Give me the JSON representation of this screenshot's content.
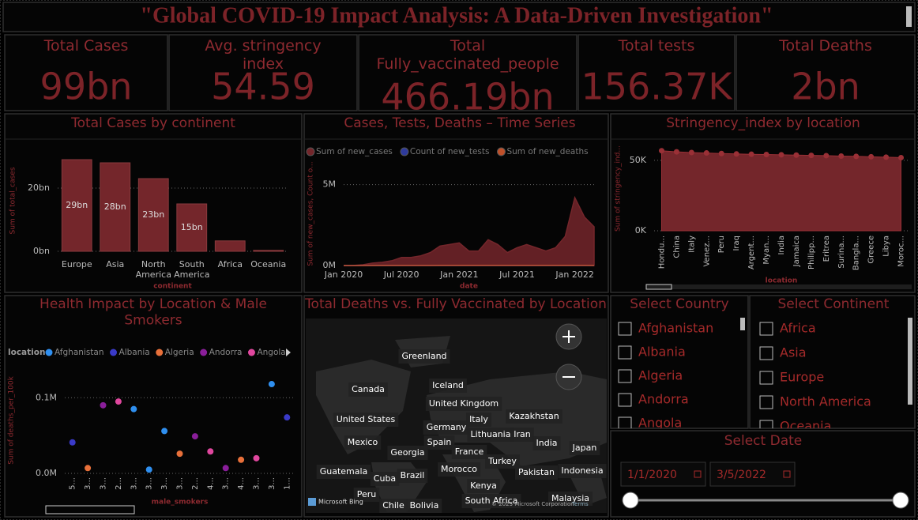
{
  "title": "\"Global COVID-19 Impact Analysis: A Data-Driven Investigation\"",
  "cards": [
    {
      "label": "Total Cases",
      "value": "99bn"
    },
    {
      "label": "Avg. stringency index",
      "value": "54.59"
    },
    {
      "label": "Total Fully_vaccinated_people",
      "value": "466.19bn"
    },
    {
      "label": "Total tests",
      "value": "156.37K"
    },
    {
      "label": "Total Deaths",
      "value": "2bn"
    }
  ],
  "chart_data": [
    {
      "type": "bar",
      "title": "Total Cases by continent",
      "categories": [
        "Europe",
        "Asia",
        "North America",
        "South America",
        "Africa",
        "Oceania"
      ],
      "values": [
        29,
        28,
        23,
        15,
        3.3,
        0.3
      ],
      "value_labels": [
        "29bn",
        "28bn",
        "23bn",
        "15bn",
        null,
        null
      ],
      "color": "#74262b",
      "ylim": [
        0,
        32
      ],
      "yticks": [
        {
          "value": 0,
          "label": "0bn"
        },
        {
          "value": 20,
          "label": "20bn"
        }
      ],
      "grid": true,
      "y_label": "Sum of total_cases",
      "x_label": "continent"
    },
    {
      "type": "line",
      "title": "Cases, Tests, Deaths – Time Series",
      "x": [
        "2020-01",
        "2020-02",
        "2020-03",
        "2020-04",
        "2020-05",
        "2020-06",
        "2020-07",
        "2020-08",
        "2020-09",
        "2020-10",
        "2020-11",
        "2020-12",
        "2021-01",
        "2021-02",
        "2021-03",
        "2021-04",
        "2021-05",
        "2021-06",
        "2021-07",
        "2021-08",
        "2021-09",
        "2021-10",
        "2021-11",
        "2021-12",
        "2022-01",
        "2022-02",
        "2022-03"
      ],
      "series": [
        {
          "name": "Sum of new_cases",
          "color": "#74262b",
          "values": [
            0.002,
            0.003,
            0.05,
            0.15,
            0.2,
            0.3,
            0.5,
            0.5,
            0.6,
            0.8,
            1.2,
            1.3,
            1.4,
            0.9,
            0.9,
            1.6,
            1.3,
            0.8,
            1.1,
            1.3,
            1.1,
            0.9,
            1.1,
            1.8,
            4.2,
            3.0,
            2.4
          ]
        },
        {
          "name": "Count of new_tests",
          "color": "#2e3a9c",
          "values": [
            0.0001,
            0.0001,
            0.0001,
            0.0001,
            0.0001,
            0.0001,
            0.0001,
            0.0001,
            0.0001,
            0.0001,
            0.0001,
            0.0001,
            0.0001,
            0.0001,
            0.0001,
            0.0001,
            0.0001,
            0.0001,
            0.0001,
            0.0001,
            0.0001,
            0.0001,
            0.0001,
            0.0001,
            0.0001,
            0.0001,
            0.0001
          ]
        },
        {
          "name": "Sum of new_deaths",
          "color": "#c0502a",
          "values": [
            0.0001,
            0.0001,
            0.002,
            0.007,
            0.005,
            0.005,
            0.006,
            0.006,
            0.006,
            0.007,
            0.012,
            0.013,
            0.016,
            0.012,
            0.009,
            0.013,
            0.013,
            0.009,
            0.009,
            0.011,
            0.009,
            0.008,
            0.008,
            0.008,
            0.009,
            0.011,
            0.007
          ]
        }
      ],
      "xlim": [
        "2020-01",
        "2022-03"
      ],
      "xticks": [
        {
          "value": "2020-01",
          "label": "Jan 2020"
        },
        {
          "value": "2020-07",
          "label": "Jul 2020"
        },
        {
          "value": "2021-01",
          "label": "Jan 2021"
        },
        {
          "value": "2021-07",
          "label": "Jul 2021"
        },
        {
          "value": "2022-01",
          "label": "Jan 2022"
        }
      ],
      "ylim": [
        0,
        6.4
      ],
      "yticks": [
        {
          "value": 0,
          "label": "0M"
        },
        {
          "value": 5,
          "label": "5M"
        }
      ],
      "grid": true,
      "y_label": "Sum of new_cases, Count o...",
      "x_label": "date"
    },
    {
      "type": "area",
      "title": "Stringency_index by location",
      "categories": [
        "Hondu...",
        "China",
        "Italy",
        "Venez...",
        "Peru",
        "Iraq",
        "Argent...",
        "Myan...",
        "India",
        "Jamaica",
        "Philipp...",
        "Eritrea",
        "Surina...",
        "Bangla...",
        "Greece",
        "Libya",
        "Moroc..."
      ],
      "values": [
        56800,
        56000,
        55500,
        55200,
        54800,
        54500,
        54300,
        54100,
        53900,
        53700,
        53500,
        53300,
        53000,
        52800,
        52500,
        52200,
        51900
      ],
      "color": "#74262b",
      "ylim": [
        0,
        60000
      ],
      "yticks": [
        {
          "value": 0,
          "label": "0K"
        },
        {
          "value": 50000,
          "label": "50K"
        }
      ],
      "grid": true,
      "y_label": "Sum of stringency_ind...",
      "x_label": "location"
    },
    {
      "type": "scatter",
      "title": "Health Impact by Location & Male Smokers",
      "legend_title": "location",
      "categories": [
        "5...",
        "3...",
        "3...",
        "2...",
        "3...",
        "3...",
        "3...",
        "3...",
        "2...",
        "4...",
        "3...",
        "4...",
        "3...",
        "3...",
        "1..."
      ],
      "series": [
        {
          "name": "Afghanistan",
          "color": "#2f8fef",
          "values": [
            null,
            null,
            null,
            null,
            0.085,
            0.005,
            0.056,
            null,
            null,
            null,
            null,
            null,
            null,
            0.118,
            null
          ]
        },
        {
          "name": "Albania",
          "color": "#3a3ac8",
          "values": [
            0.041,
            null,
            null,
            null,
            null,
            null,
            null,
            null,
            null,
            null,
            null,
            null,
            null,
            null,
            0.074
          ]
        },
        {
          "name": "Algeria",
          "color": "#e8703a",
          "values": [
            null,
            0.007,
            null,
            null,
            null,
            null,
            null,
            0.026,
            null,
            null,
            null,
            0.018,
            null,
            null,
            null
          ]
        },
        {
          "name": "Andorra",
          "color": "#8a1e9a",
          "values": [
            null,
            null,
            0.09,
            null,
            null,
            null,
            null,
            null,
            0.049,
            null,
            0.007,
            null,
            null,
            null,
            null
          ]
        },
        {
          "name": "Angola",
          "color": "#e0479e",
          "values": [
            null,
            null,
            null,
            0.095,
            null,
            null,
            null,
            null,
            null,
            0.029,
            null,
            null,
            0.02,
            null,
            null
          ]
        }
      ],
      "ylim": [
        0,
        0.14
      ],
      "yticks": [
        {
          "value": 0,
          "label": "0.0M"
        },
        {
          "value": 0.1,
          "label": "0.1M"
        }
      ],
      "grid": true,
      "y_label": "Sum of deaths_per_100k",
      "x_label": "male_smokers"
    }
  ],
  "map": {
    "title": "Total Deaths vs. Fully Vaccinated by Location",
    "labels": [
      "Greenland",
      "Canada",
      "Iceland",
      "United Kingdom",
      "United States",
      "Italy",
      "Kazakhstan",
      "Germany",
      "Lithuania",
      "Iran",
      "Mexico",
      "Spain",
      "India",
      "Georgia",
      "France",
      "Japan",
      "Turkey",
      "Guatemala",
      "Cuba",
      "Brazil",
      "Morocco",
      "Pakistan",
      "Indonesia",
      "Kenya",
      "Peru",
      "Chile",
      "Bolivia",
      "South Africa",
      "Malaysia"
    ],
    "logo": "Microsoft Bing",
    "copyright": "© 2023 Microsoft Corporation",
    "terms": "Terms"
  },
  "slicers": {
    "country": {
      "title": "Select Country",
      "items": [
        "Afghanistan",
        "Albania",
        "Algeria",
        "Andorra",
        "Angola"
      ]
    },
    "continent": {
      "title": "Select Continent",
      "items": [
        "Africa",
        "Asia",
        "Europe",
        "North America",
        "Oceania"
      ]
    },
    "date": {
      "title": "Select Date",
      "start": "1/1/2020",
      "end": "3/5/2022"
    }
  }
}
